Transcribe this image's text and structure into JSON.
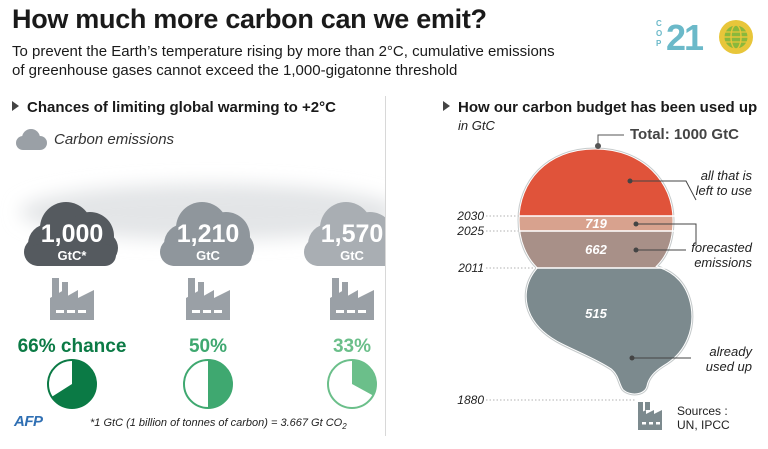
{
  "header": {
    "title": "How much more carbon can we emit?",
    "subtitle_line1": "To prevent the Earth’s temperature rising by more than 2°C, cumulative emissions",
    "subtitle_line2": "of greenhouse gases cannot exceed the 1,000-gigatonne threshold"
  },
  "logo": {
    "cop_text": "COP",
    "number": "21",
    "icon": "globe-icon"
  },
  "left_panel": {
    "title": "Chances of limiting global warming to +2°C",
    "legend_label": "Carbon emissions",
    "footnote": "*1 GtC (1 billion of tonnes of carbon)  = 3.667 Gt CO",
    "footnote_sub": "2"
  },
  "right_panel": {
    "title": "How our carbon budget has been used up",
    "unit": "in GtC",
    "total_label": "Total: 1000 GtC",
    "annotations": {
      "left_to_use": [
        "all that is",
        "left to use"
      ],
      "forecasted": [
        "forecasted",
        "emissions"
      ],
      "already_used": [
        "already",
        "used up"
      ]
    },
    "sources": [
      "Sources :",
      "UN, IPCC"
    ]
  },
  "branding": {
    "agency": "AFP"
  },
  "colors": {
    "dark_green": "#0b7a45",
    "mid_green": "#3fa870",
    "light_green": "#6bbf8a",
    "remaining": "#e0533a",
    "forecast_2030": "#d8a28e",
    "forecast_2025": "#a89088",
    "used": "#7c8a8e",
    "cloud_dark": "#555a5f",
    "cloud_mid": "#8f969c",
    "cloud_light": "#a9aeb3"
  },
  "chart_data": [
    {
      "type": "pie",
      "title": "Chances of limiting global warming to +2°C",
      "series": [
        {
          "emissions_value": "1,000",
          "emissions_unit": "GtC*",
          "chance_label": "66% chance",
          "chance": 0.66,
          "color": "#0b7a45",
          "cloud_color": "#555a5f"
        },
        {
          "emissions_value": "1,210",
          "emissions_unit": "GtC",
          "chance_label": "50%",
          "chance": 0.5,
          "color": "#3fa870",
          "cloud_color": "#8f969c"
        },
        {
          "emissions_value": "1,570",
          "emissions_unit": "GtC",
          "chance_label": "33%",
          "chance": 0.33,
          "color": "#6bbf8a",
          "cloud_color": "#a9aeb3"
        }
      ]
    },
    {
      "type": "area",
      "title": "How our carbon budget has been used up",
      "unit": "in GtC",
      "total": 1000,
      "years": [
        "1880",
        "2011",
        "2025",
        "2030"
      ],
      "segments": [
        {
          "name": "already used up",
          "from": "1880",
          "to": "2011",
          "label": "515",
          "value": 515
        },
        {
          "name": "forecasted emissions",
          "from": "2011",
          "to": "2025",
          "label": "662",
          "value": 662
        },
        {
          "name": "forecasted emissions",
          "from": "2025",
          "to": "2030",
          "label": "719",
          "value": 719
        },
        {
          "name": "all that is left to use",
          "from": "2030",
          "to": "",
          "label": "",
          "value": 281
        }
      ]
    }
  ]
}
